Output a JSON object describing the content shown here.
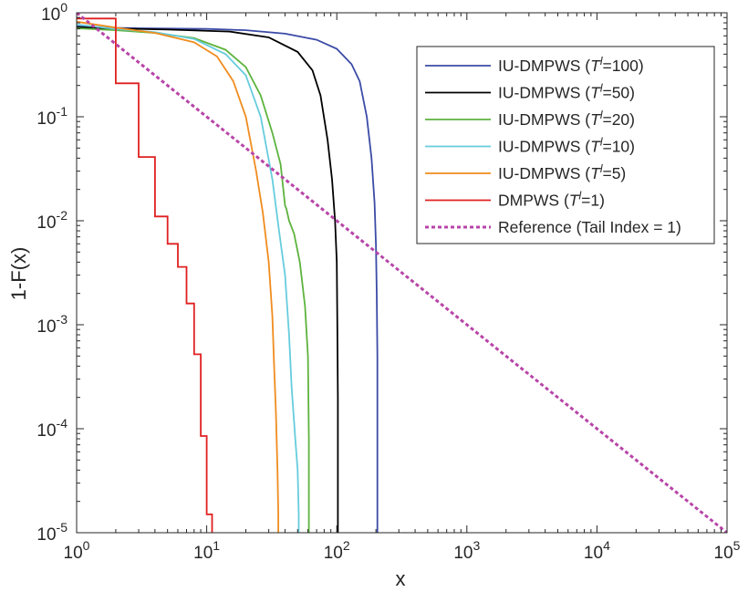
{
  "chart_data": {
    "type": "line",
    "title": "",
    "xlabel": "x",
    "ylabel": "1-F(x)",
    "xscale": "log",
    "yscale": "log",
    "xlim": [
      1,
      100000
    ],
    "ylim": [
      1e-05,
      1
    ],
    "grid": false,
    "legend_position": "top-right",
    "x_ticks": [
      {
        "base": "10",
        "exp": "0",
        "value": 1
      },
      {
        "base": "10",
        "exp": "1",
        "value": 10
      },
      {
        "base": "10",
        "exp": "2",
        "value": 100
      },
      {
        "base": "10",
        "exp": "3",
        "value": 1000
      },
      {
        "base": "10",
        "exp": "4",
        "value": 10000
      },
      {
        "base": "10",
        "exp": "5",
        "value": 100000
      }
    ],
    "y_ticks": [
      {
        "base": "10",
        "exp": "0",
        "value": 1
      },
      {
        "base": "10",
        "exp": "-1",
        "value": 0.1
      },
      {
        "base": "10",
        "exp": "-2",
        "value": 0.01
      },
      {
        "base": "10",
        "exp": "-3",
        "value": 0.001
      },
      {
        "base": "10",
        "exp": "-4",
        "value": 0.0001
      },
      {
        "base": "10",
        "exp": "-5",
        "value": 1e-05
      }
    ],
    "series": [
      {
        "name": "IU-DMPWS (T^l=100)",
        "label_prefix": "IU-DMPWS (",
        "label_T": "T",
        "label_sup": "l",
        "label_suffix": "=100)",
        "color": "#3B4BA6",
        "dash": "",
        "x": [
          1,
          1.6,
          3,
          10,
          20,
          40,
          70,
          100,
          130,
          150,
          170,
          185,
          195,
          200,
          203,
          205,
          205
        ],
        "y": [
          0.74,
          0.72,
          0.71,
          0.7,
          0.68,
          0.63,
          0.55,
          0.45,
          0.32,
          0.22,
          0.1,
          0.04,
          0.015,
          0.006,
          0.002,
          0.0005,
          1e-05
        ]
      },
      {
        "name": "IU-DMPWS (T^l=50)",
        "label_prefix": "IU-DMPWS (",
        "label_T": "T",
        "label_sup": "l",
        "label_suffix": "=50)",
        "color": "#000000",
        "dash": "",
        "x": [
          1,
          1.6,
          5,
          15,
          30,
          50,
          65,
          75,
          85,
          92,
          97,
          100,
          101,
          102,
          102
        ],
        "y": [
          0.73,
          0.71,
          0.69,
          0.66,
          0.58,
          0.42,
          0.28,
          0.16,
          0.06,
          0.025,
          0.01,
          0.004,
          0.001,
          0.0002,
          1e-05
        ]
      },
      {
        "name": "IU-DMPWS (T^l=20)",
        "label_prefix": "IU-DMPWS (",
        "label_T": "T",
        "label_sup": "l",
        "label_suffix": "=20)",
        "color": "#5DB33D",
        "dash": "",
        "x": [
          1,
          2,
          4,
          8,
          14,
          20,
          26,
          32,
          37,
          40,
          41,
          43,
          47,
          52,
          57,
          60,
          61,
          61
        ],
        "y": [
          0.71,
          0.68,
          0.64,
          0.57,
          0.44,
          0.3,
          0.16,
          0.07,
          0.035,
          0.014,
          0.013,
          0.01,
          0.0075,
          0.004,
          0.0015,
          0.0005,
          8e-05,
          1e-05
        ]
      },
      {
        "name": "IU-DMPWS (T^l=10)",
        "label_prefix": "IU-DMPWS (",
        "label_T": "T",
        "label_sup": "l",
        "label_suffix": "=10)",
        "color": "#66CCDD",
        "dash": "",
        "x": [
          1,
          2,
          4,
          8,
          14,
          20,
          26,
          32,
          36,
          40,
          43,
          45,
          48,
          50,
          51,
          51
        ],
        "y": [
          0.77,
          0.7,
          0.65,
          0.56,
          0.4,
          0.25,
          0.1,
          0.025,
          0.008,
          0.003,
          0.0008,
          0.00025,
          8e-05,
          4e-05,
          1.5e-05,
          1e-05
        ]
      },
      {
        "name": "IU-DMPWS (T^l=5)",
        "label_prefix": "IU-DMPWS (",
        "label_T": "T",
        "label_sup": "l",
        "label_suffix": "=5)",
        "color": "#F08C1E",
        "dash": "",
        "x": [
          1,
          2,
          4,
          8,
          12,
          16,
          20,
          24,
          27,
          30,
          32,
          33,
          34,
          35,
          35.5,
          35.5
        ],
        "y": [
          0.82,
          0.72,
          0.64,
          0.52,
          0.38,
          0.22,
          0.1,
          0.03,
          0.012,
          0.004,
          0.0012,
          0.0004,
          0.00015,
          4e-05,
          1.5e-05,
          1e-05
        ]
      },
      {
        "name": "DMPWS (T^l=1)",
        "label_prefix": "DMPWS (",
        "label_T": "T",
        "label_sup": "l",
        "label_suffix": "=1)",
        "color": "#E02020",
        "dash": "",
        "steps": true,
        "x": [
          1,
          2,
          3,
          4,
          5,
          6,
          7,
          8,
          9,
          10,
          11
        ],
        "y": [
          0.88,
          0.21,
          0.041,
          0.011,
          0.006,
          0.0036,
          0.0016,
          0.00052,
          8.5e-05,
          1.5e-05,
          1e-05
        ]
      },
      {
        "name": "Reference (Tail Index = 1)",
        "label_prefix": "Reference (Tail Index = 1)",
        "label_T": "",
        "label_sup": "",
        "label_suffix": "",
        "color": "#B845A8",
        "dash": "4,3",
        "x": [
          1,
          100000
        ],
        "y": [
          1,
          1e-05
        ]
      }
    ]
  }
}
